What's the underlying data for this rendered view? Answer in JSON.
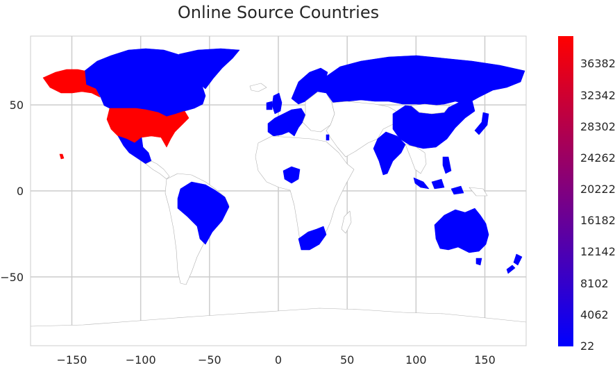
{
  "title": "Online Source Countries",
  "axes": {
    "xlim": [
      -180,
      180
    ],
    "ylim": [
      -90,
      90
    ],
    "x_ticks": [
      -150,
      -100,
      -50,
      0,
      50,
      100,
      150
    ],
    "y_ticks": [
      50,
      0,
      -50
    ],
    "x_tick_labels": [
      "−150",
      "−100",
      "−50",
      "0",
      "50",
      "100",
      "150"
    ],
    "y_tick_labels": [
      "50",
      "0",
      "−50"
    ],
    "grid": true
  },
  "colorbar": {
    "min": 22,
    "max": 40000,
    "color_low": "#0000ff",
    "color_high": "#ff0000",
    "tick_labels": [
      "36382",
      "32342",
      "28302",
      "24262",
      "20222",
      "16182",
      "12142",
      "8102",
      "4062",
      "22"
    ]
  },
  "colors": {
    "high": "#ff0000",
    "low": "#0000ff",
    "no_data": "#ffffff",
    "border": "#b0b0b0",
    "grid": "#cccccc"
  },
  "chart_data": {
    "type": "choropleth",
    "title": "Online Source Countries",
    "value_range": [
      22,
      40000
    ],
    "highlighted_countries": [
      {
        "name": "United States",
        "level": "high"
      },
      {
        "name": "Canada",
        "level": "low"
      },
      {
        "name": "Mexico",
        "level": "low"
      },
      {
        "name": "Brazil",
        "level": "low"
      },
      {
        "name": "Greenland",
        "level": "low"
      },
      {
        "name": "United Kingdom",
        "level": "low"
      },
      {
        "name": "Ireland",
        "level": "low"
      },
      {
        "name": "France",
        "level": "low"
      },
      {
        "name": "Germany",
        "level": "low"
      },
      {
        "name": "Spain",
        "level": "low"
      },
      {
        "name": "Italy",
        "level": "low"
      },
      {
        "name": "Norway",
        "level": "low"
      },
      {
        "name": "Sweden",
        "level": "low"
      },
      {
        "name": "Finland",
        "level": "low"
      },
      {
        "name": "Russia",
        "level": "low"
      },
      {
        "name": "China",
        "level": "low"
      },
      {
        "name": "India",
        "level": "low"
      },
      {
        "name": "Nigeria",
        "level": "low"
      },
      {
        "name": "South Africa",
        "level": "low"
      },
      {
        "name": "Australia",
        "level": "low"
      },
      {
        "name": "New Zealand",
        "level": "low"
      },
      {
        "name": "Indonesia",
        "level": "low"
      },
      {
        "name": "Philippines",
        "level": "low"
      },
      {
        "name": "Japan",
        "level": "low"
      },
      {
        "name": "Israel",
        "level": "low"
      }
    ]
  }
}
